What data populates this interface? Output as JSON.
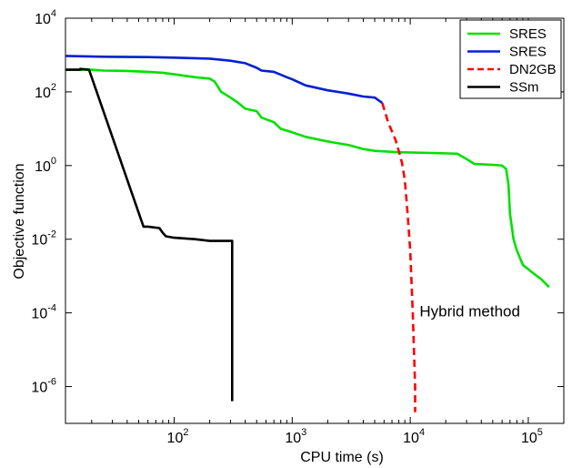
{
  "chart_data": {
    "type": "line",
    "xlabel": "CPU time (s)",
    "ylabel": "Objective function",
    "xscale": "log",
    "yscale": "log",
    "xlim": [
      12,
      200000
    ],
    "ylim": [
      1e-07,
      10000
    ],
    "grid": false,
    "legend_position": "top-right",
    "x_ticks": [
      {
        "value": 100,
        "base": "10",
        "exp": "2"
      },
      {
        "value": 1000,
        "base": "10",
        "exp": "3"
      },
      {
        "value": 10000,
        "base": "10",
        "exp": "4"
      },
      {
        "value": 100000,
        "base": "10",
        "exp": "5"
      }
    ],
    "y_ticks": [
      {
        "value": 1e-06,
        "base": "10",
        "exp": "-6"
      },
      {
        "value": 0.0001,
        "base": "10",
        "exp": "-4"
      },
      {
        "value": 0.01,
        "base": "10",
        "exp": "-2"
      },
      {
        "value": 1,
        "base": "10",
        "exp": "0"
      },
      {
        "value": 100,
        "base": "10",
        "exp": "2"
      },
      {
        "value": 10000,
        "base": "10",
        "exp": "4"
      }
    ],
    "annotations": [
      {
        "text": "Hybrid method",
        "x": 12000,
        "y": 8e-05
      }
    ],
    "series": [
      {
        "name": "SRES",
        "color": "#00e000",
        "dash": "solid",
        "points": [
          [
            12,
            400
          ],
          [
            20,
            400
          ],
          [
            25,
            380
          ],
          [
            40,
            370
          ],
          [
            60,
            350
          ],
          [
            80,
            330
          ],
          [
            100,
            300
          ],
          [
            150,
            250
          ],
          [
            200,
            230
          ],
          [
            220,
            190
          ],
          [
            250,
            100
          ],
          [
            300,
            70
          ],
          [
            350,
            50
          ],
          [
            400,
            35
          ],
          [
            500,
            30
          ],
          [
            550,
            20
          ],
          [
            700,
            15
          ],
          [
            800,
            10
          ],
          [
            1000,
            8
          ],
          [
            1300,
            6
          ],
          [
            2000,
            4.5
          ],
          [
            3000,
            3.6
          ],
          [
            4000,
            2.8
          ],
          [
            5000,
            2.5
          ],
          [
            8000,
            2.3
          ],
          [
            15000,
            2.2
          ],
          [
            25000,
            2.1
          ],
          [
            30000,
            1.5
          ],
          [
            35000,
            1.1
          ],
          [
            50000,
            1.05
          ],
          [
            60000,
            1.0
          ],
          [
            65000,
            0.8
          ],
          [
            68000,
            0.3
          ],
          [
            70000,
            0.05
          ],
          [
            75000,
            0.01
          ],
          [
            80000,
            0.005
          ],
          [
            90000,
            0.002
          ],
          [
            110000,
            0.0012
          ],
          [
            130000,
            0.0008
          ],
          [
            150000,
            0.0005
          ]
        ]
      },
      {
        "name": "SRES",
        "color": "#0020d0",
        "dash": "solid",
        "points": [
          [
            12,
            950
          ],
          [
            25,
            900
          ],
          [
            60,
            880
          ],
          [
            100,
            850
          ],
          [
            200,
            800
          ],
          [
            300,
            700
          ],
          [
            400,
            600
          ],
          [
            500,
            450
          ],
          [
            550,
            380
          ],
          [
            700,
            350
          ],
          [
            900,
            250
          ],
          [
            1000,
            220
          ],
          [
            1300,
            150
          ],
          [
            2000,
            110
          ],
          [
            3000,
            90
          ],
          [
            4000,
            75
          ],
          [
            5000,
            70
          ],
          [
            5800,
            50
          ]
        ]
      },
      {
        "name": "DN2GB",
        "color": "#ff0000",
        "dash": "dashed",
        "points": [
          [
            5800,
            50
          ],
          [
            6500,
            15
          ],
          [
            7500,
            5
          ],
          [
            8000,
            2.5
          ],
          [
            8500,
            1.2
          ],
          [
            9000,
            0.4
          ],
          [
            9500,
            0.05
          ],
          [
            10000,
            0.005
          ],
          [
            10500,
            0.0001
          ],
          [
            11000,
            1e-06
          ],
          [
            11000,
            2e-07
          ]
        ]
      },
      {
        "name": "SSm",
        "color": "#000000",
        "dash": "solid",
        "points": [
          [
            12,
            400
          ],
          [
            16,
            400
          ],
          [
            16,
            420
          ],
          [
            19,
            400
          ],
          [
            55,
            0.022
          ],
          [
            60,
            0.022
          ],
          [
            75,
            0.02
          ],
          [
            80,
            0.015
          ],
          [
            85,
            0.012
          ],
          [
            100,
            0.011
          ],
          [
            150,
            0.01
          ],
          [
            200,
            0.009
          ],
          [
            300,
            0.009
          ],
          [
            310,
            0.009
          ],
          [
            310,
            4e-07
          ]
        ]
      }
    ]
  }
}
